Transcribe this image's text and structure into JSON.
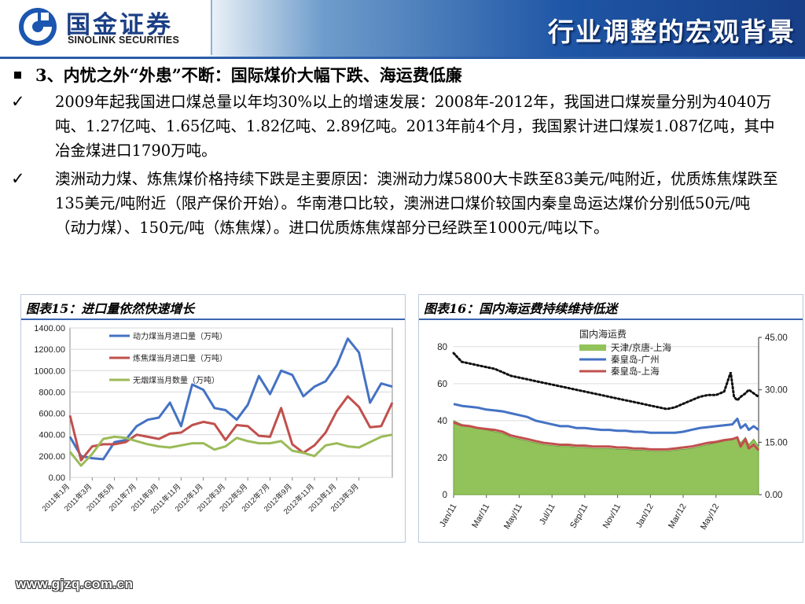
{
  "header": {
    "logo_cn": "国金证券",
    "logo_en": "SINOLINK SECURITIES",
    "title": "行业调整的宏观背景"
  },
  "section_heading": "3、内忧之外“外患”不断：国际煤价大幅下跌、海运费低廉",
  "paragraphs": [
    "2009年起我国进口煤总量以年均30%以上的增速发展：2008年-2012年，我国进口煤炭量分别为4040万吨、1.27亿吨、1.65亿吨、1.82亿吨、2.89亿吨。2013年前4个月，我国累计进口煤炭1.087亿吨，其中冶金煤进口1790万吨。",
    "澳洲动力煤、炼焦煤价格持续下跌是主要原因：澳洲动力煤5800大卡跌至83美元/吨附近，优质炼焦煤跌至135美元/吨附近（限产保价开始）。华南港口比较，澳洲进口煤价较国内秦皇岛运达煤价分别低50元/吨（动力煤）、150元/吨（炼焦煤）。进口优质炼焦煤部分已经跌至1000元/吨以下。"
  ],
  "footer": {
    "url": "www.gjzq.com.cn"
  },
  "colors": {
    "blue_series": "#4472c4",
    "red_series": "#c0504d",
    "green_series": "#9bbb59",
    "area_green": "#92c35a",
    "header_dark": "#173f88"
  },
  "icons": {
    "bullet": "square-bullet-icon",
    "check": "checkmark-icon",
    "logo": "sinolink-logo-icon"
  },
  "chart_data": [
    {
      "type": "line",
      "caption": "图表15：进口量依然快速增长",
      "x_tick_labels": [
        "2011年1月",
        "2011年3月",
        "2011年5月",
        "2011年7月",
        "2011年9月",
        "2011年11月",
        "2012年1月",
        "2012年3月",
        "2012年5月",
        "2012年7月",
        "2012年9月",
        "2012年11月",
        "2013年1月",
        "2013年3月"
      ],
      "x_tick_positions": [
        0,
        2,
        4,
        6,
        8,
        10,
        12,
        14,
        16,
        18,
        20,
        22,
        24,
        26
      ],
      "y_ticks": [
        "0.00",
        "200.00",
        "400.00",
        "600.00",
        "800.00",
        "1000.00",
        "1200.00",
        "1400.00"
      ],
      "ylim": [
        0,
        1400
      ],
      "grid": true,
      "legend_placement": "top-center",
      "series": [
        {
          "name": "动力煤当月进口量（万吨）",
          "color": "#4472c4",
          "values": [
            380,
            200,
            180,
            170,
            330,
            350,
            480,
            540,
            560,
            700,
            480,
            870,
            820,
            650,
            630,
            540,
            680,
            950,
            780,
            1000,
            960,
            760,
            850,
            900,
            1050,
            1300,
            1170,
            700,
            880,
            850
          ]
        },
        {
          "name": "炼焦煤当月进口量（万吨）",
          "color": "#c0504d",
          "values": [
            580,
            160,
            290,
            310,
            310,
            330,
            400,
            380,
            360,
            410,
            420,
            490,
            520,
            500,
            350,
            490,
            480,
            390,
            380,
            650,
            310,
            230,
            300,
            420,
            620,
            760,
            660,
            470,
            480,
            700
          ]
        },
        {
          "name": "无烟煤当月数量（万吨）",
          "color": "#9bbb59",
          "values": [
            240,
            110,
            220,
            360,
            380,
            370,
            340,
            310,
            290,
            280,
            300,
            320,
            320,
            260,
            290,
            370,
            340,
            320,
            320,
            340,
            250,
            230,
            200,
            300,
            320,
            290,
            280,
            330,
            380,
            400
          ]
        }
      ]
    },
    {
      "type": "area",
      "caption": "图表16：国内海运费持续维持低迷",
      "legend_title": "国内海运费",
      "x_tick_labels": [
        "Jan/11",
        "Mar/11",
        "May/11",
        "Jul/11",
        "Sep/11",
        "Nov/11",
        "Jan/12",
        "Mar/12",
        "May/12"
      ],
      "y_left_ticks": [
        "0",
        "20",
        "40",
        "60",
        "80"
      ],
      "y_right_ticks": [
        "0.00",
        "15.00",
        "30.00",
        "45.00"
      ],
      "ylim_left": [
        0,
        85
      ],
      "ylim_right": [
        0,
        45
      ],
      "grid": true,
      "legend_placement": "top-right",
      "series": [
        {
          "name": "天津/京唐-上海",
          "kind": "area",
          "axis": "left",
          "color": "#92c35a",
          "x": [
            0,
            0.5,
            1,
            1.5,
            2,
            2.5,
            3,
            3.5,
            4,
            4.5,
            5,
            5.5,
            6,
            6.5,
            7,
            7.5,
            8,
            8.5,
            9,
            9.5,
            10,
            10.5,
            11,
            11.5,
            12,
            12.5,
            13,
            13.5,
            14,
            14.5,
            15,
            15.5,
            16,
            16.5,
            17,
            17.3,
            17.5,
            17.8,
            18,
            18.3,
            18.6
          ],
          "values": [
            40,
            38,
            37,
            36,
            35,
            34,
            33,
            31,
            30,
            29,
            28,
            27,
            26.5,
            26,
            26,
            25.5,
            25.5,
            25,
            25,
            25,
            24.5,
            24.5,
            24,
            24,
            23.5,
            23.5,
            23.5,
            24,
            24.5,
            25,
            26,
            27,
            28,
            29,
            30,
            31,
            28,
            31,
            27,
            30,
            26
          ]
        },
        {
          "name": "秦皇岛-广州",
          "kind": "line",
          "axis": "left",
          "color": "#4472c4",
          "x": [
            0,
            0.5,
            1,
            1.5,
            2,
            2.5,
            3,
            3.5,
            4,
            4.5,
            5,
            5.5,
            6,
            6.5,
            7,
            7.5,
            8,
            8.5,
            9,
            9.5,
            10,
            10.5,
            11,
            11.5,
            12,
            12.5,
            13,
            13.5,
            14,
            14.5,
            15,
            15.5,
            16,
            16.5,
            17,
            17.3,
            17.5,
            17.8,
            18,
            18.3,
            18.6
          ],
          "values": [
            49,
            48,
            47.5,
            47,
            46,
            45.5,
            45,
            44,
            43,
            42,
            40,
            39,
            38,
            37,
            37,
            36,
            36,
            35.5,
            35,
            35,
            34.5,
            34.5,
            34,
            34,
            33.5,
            33.5,
            33.5,
            33.5,
            34,
            35,
            36,
            36.5,
            37,
            37.5,
            38,
            41,
            36,
            38,
            35,
            37,
            35
          ]
        },
        {
          "name": "秦皇岛-上海",
          "kind": "line",
          "axis": "left",
          "color": "#c0504d",
          "x": [
            0,
            0.5,
            1,
            1.5,
            2,
            2.5,
            3,
            3.5,
            4,
            4.5,
            5,
            5.5,
            6,
            6.5,
            7,
            7.5,
            8,
            8.5,
            9,
            9.5,
            10,
            10.5,
            11,
            11.5,
            12,
            12.5,
            13,
            13.5,
            14,
            14.5,
            15,
            15.5,
            16,
            16.5,
            17,
            17.3,
            17.5,
            17.8,
            18,
            18.3,
            18.6
          ],
          "values": [
            39,
            37.5,
            37,
            36,
            35.5,
            35,
            34,
            32,
            31,
            30,
            29,
            28,
            27.5,
            27,
            27,
            26.5,
            26.5,
            26,
            26,
            26,
            25.5,
            25.5,
            25,
            25,
            24.5,
            24.5,
            24.5,
            25,
            25.5,
            26,
            27,
            28,
            28.5,
            29.5,
            30,
            31,
            26,
            30,
            25,
            27,
            24
          ]
        },
        {
          "name": "",
          "kind": "dotted",
          "axis": "right",
          "color": "#111111",
          "x": [
            0,
            0.5,
            1,
            1.5,
            2,
            2.5,
            3,
            3.5,
            4,
            4.5,
            5,
            5.5,
            6,
            6.5,
            7,
            7.5,
            8,
            8.5,
            9,
            9.5,
            10,
            10.5,
            11,
            11.5,
            12,
            12.5,
            13,
            13.5,
            14,
            14.5,
            15,
            15.5,
            16,
            16.5,
            16.9,
            17.1,
            17.3,
            17.5,
            17.8,
            18,
            18.3,
            18.6
          ],
          "values": [
            40.5,
            38,
            37.5,
            37,
            36.5,
            36,
            35,
            34,
            33.5,
            33,
            32.5,
            32,
            31.5,
            31,
            30.5,
            30,
            29.5,
            29,
            28.5,
            28,
            27.5,
            27,
            26.5,
            26,
            25.5,
            25,
            24.5,
            25,
            26,
            27,
            28,
            28.5,
            28.5,
            29.5,
            35,
            28,
            27,
            28,
            29,
            30,
            29,
            28
          ]
        }
      ]
    }
  ]
}
